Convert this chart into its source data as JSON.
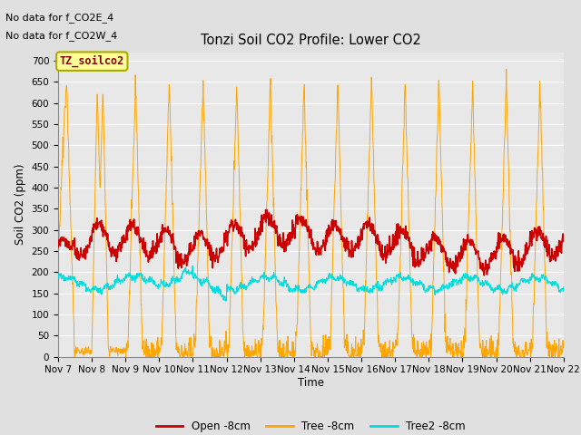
{
  "title": "Tonzi Soil CO2 Profile: Lower CO2",
  "ylabel": "Soil CO2 (ppm)",
  "xlabel": "Time",
  "annotations": [
    "No data for f_CO2E_4",
    "No data for f_CO2W_4"
  ],
  "box_label": "TZ_soilco2",
  "legend_labels": [
    "Open -8cm",
    "Tree -8cm",
    "Tree2 -8cm"
  ],
  "legend_colors": [
    "#cc0000",
    "#FFA500",
    "#00DDDD"
  ],
  "line_colors": {
    "open": "#cc0000",
    "tree": "#FFA500",
    "tree2": "#00DDDD"
  },
  "x_tick_labels": [
    "Nov 7",
    "Nov 8",
    "Nov 9",
    "Nov 10",
    "Nov 11",
    "Nov 12",
    "Nov 13",
    "Nov 14",
    "Nov 15",
    "Nov 16",
    "Nov 17",
    "Nov 18",
    "Nov 19",
    "Nov 20",
    "Nov 21",
    "Nov 22"
  ],
  "ylim": [
    0,
    720
  ],
  "yticks": [
    0,
    50,
    100,
    150,
    200,
    250,
    300,
    350,
    400,
    450,
    500,
    550,
    600,
    650,
    700
  ],
  "bg_color": "#E0E0E0",
  "plot_bg_color": "#E8E8E8",
  "grid_color": "#FFFFFF",
  "n_days": 15,
  "points_per_day": 96
}
